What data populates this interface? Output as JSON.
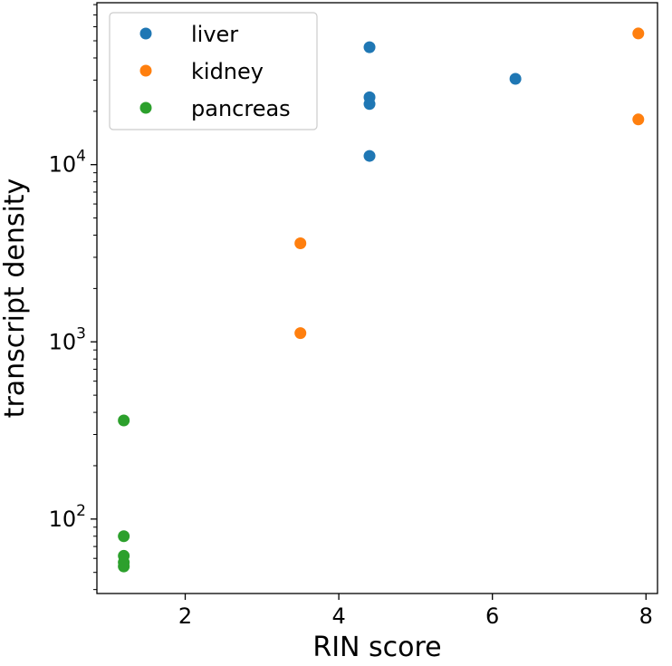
{
  "chart_data": {
    "type": "scatter",
    "xlabel": "RIN score",
    "ylabel": "transcript density",
    "xlim": [
      0.85,
      8.15
    ],
    "ylim": [
      38,
      82000
    ],
    "yscale": "log",
    "grid": false,
    "legend_position": "top-left",
    "x_ticks": [
      {
        "value": 2,
        "label": "2"
      },
      {
        "value": 4,
        "label": "4"
      },
      {
        "value": 6,
        "label": "6"
      },
      {
        "value": 8,
        "label": "8"
      }
    ],
    "y_ticks": [
      {
        "value": 100,
        "base": "10",
        "exp": "2"
      },
      {
        "value": 1000,
        "base": "10",
        "exp": "3"
      },
      {
        "value": 10000,
        "base": "10",
        "exp": "4"
      }
    ],
    "series": [
      {
        "name": "liver",
        "color": "#1f77b4",
        "points": [
          {
            "x": 4.4,
            "y": 46000
          },
          {
            "x": 4.4,
            "y": 24000
          },
          {
            "x": 4.4,
            "y": 22000
          },
          {
            "x": 4.4,
            "y": 11200
          },
          {
            "x": 6.3,
            "y": 30500
          }
        ]
      },
      {
        "name": "kidney",
        "color": "#ff7f0e",
        "points": [
          {
            "x": 7.9,
            "y": 55000
          },
          {
            "x": 7.9,
            "y": 18000
          },
          {
            "x": 3.5,
            "y": 3600
          },
          {
            "x": 3.5,
            "y": 1120
          }
        ]
      },
      {
        "name": "pancreas",
        "color": "#2ca02c",
        "points": [
          {
            "x": 1.2,
            "y": 360
          },
          {
            "x": 1.2,
            "y": 80
          },
          {
            "x": 1.2,
            "y": 62
          },
          {
            "x": 1.2,
            "y": 57
          },
          {
            "x": 1.2,
            "y": 54
          }
        ]
      }
    ]
  }
}
